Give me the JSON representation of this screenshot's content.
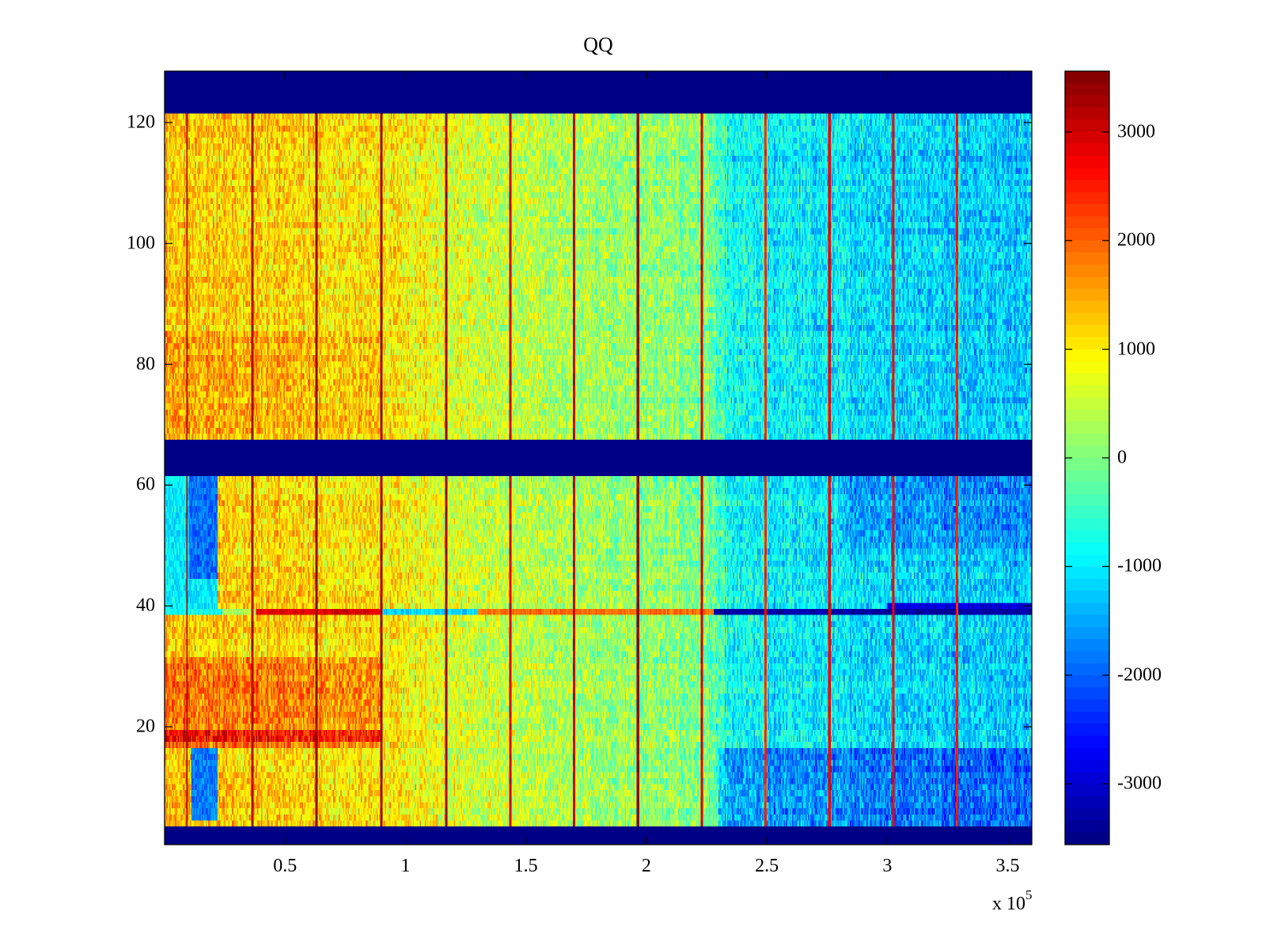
{
  "chart_data": {
    "type": "heatmap",
    "title": "QQ",
    "xlabel": "",
    "ylabel": "",
    "x_multiplier_label": {
      "base": "x 10",
      "exponent": "5"
    },
    "xlim": [
      0,
      360000
    ],
    "ylim": [
      0.5,
      128.5
    ],
    "clim": [
      -3560,
      3560
    ],
    "colormap": "jet",
    "colormap_levels": 64,
    "x_ticks": [
      {
        "value": 50000,
        "label": "0.5"
      },
      {
        "value": 100000,
        "label": "1"
      },
      {
        "value": 150000,
        "label": "1.5"
      },
      {
        "value": 200000,
        "label": "2"
      },
      {
        "value": 250000,
        "label": "2.5"
      },
      {
        "value": 300000,
        "label": "3"
      },
      {
        "value": 350000,
        "label": "3.5"
      }
    ],
    "y_ticks": [
      {
        "value": 20,
        "label": "20"
      },
      {
        "value": 40,
        "label": "40"
      },
      {
        "value": 60,
        "label": "60"
      },
      {
        "value": 80,
        "label": "80"
      },
      {
        "value": 100,
        "label": "100"
      },
      {
        "value": 120,
        "label": "120"
      }
    ],
    "colorbar_ticks": [
      {
        "value": 3000,
        "label": "3000"
      },
      {
        "value": 2000,
        "label": "2000"
      },
      {
        "value": 1000,
        "label": "1000"
      },
      {
        "value": 0,
        "label": "0"
      },
      {
        "value": -1000,
        "label": "-1000"
      },
      {
        "value": -2000,
        "label": "-2000"
      },
      {
        "value": -3000,
        "label": "-3000"
      }
    ],
    "empty_row_bands": [
      {
        "rows": [
          1,
          3
        ],
        "value": -3560
      },
      {
        "rows": [
          62,
          67
        ],
        "value": -3560
      },
      {
        "rows": [
          122,
          128
        ],
        "value": -3560
      }
    ],
    "columns": 720,
    "column_trend": [
      {
        "x": 0,
        "value": 1300
      },
      {
        "x": 90000,
        "value": 1000
      },
      {
        "x": 150000,
        "value": 400
      },
      {
        "x": 225000,
        "value": 0
      },
      {
        "x": 235000,
        "value": -900
      },
      {
        "x": 360000,
        "value": -1300
      }
    ],
    "row_group_offsets": [
      {
        "rows": [
          68,
          121
        ],
        "offset": 0
      },
      {
        "rows": [
          69,
          85
        ],
        "offset": 250,
        "x_range": [
          0,
          90000
        ]
      },
      {
        "rows": [
          4,
          61
        ],
        "offset": 0
      },
      {
        "rows": [
          17,
          31
        ],
        "offset": 600,
        "x_range": [
          0,
          90000
        ]
      },
      {
        "rows": [
          18,
          19
        ],
        "offset": 700,
        "x_range": [
          0,
          90000
        ]
      },
      {
        "rows": [
          4,
          16
        ],
        "offset": -700,
        "x_range": [
          230000,
          360000
        ]
      },
      {
        "rows": [
          50,
          61
        ],
        "offset": -400,
        "x_range": [
          280000,
          360000
        ]
      }
    ],
    "local_blocks": [
      {
        "rows": [
          40,
          61
        ],
        "x_range": [
          0,
          22000
        ],
        "value": -1000
      },
      {
        "rows": [
          45,
          61
        ],
        "x_range": [
          10000,
          22000
        ],
        "value": -1900
      },
      {
        "rows": [
          5,
          16
        ],
        "x_range": [
          11000,
          22000
        ],
        "value": -1800
      }
    ],
    "special_rows": [
      {
        "row": 39,
        "segments": [
          {
            "x_range": [
              0,
              24000
            ],
            "value": -800
          },
          {
            "x_range": [
              24000,
              38000
            ],
            "value": 300
          },
          {
            "x_range": [
              38000,
              90000
            ],
            "value": 2900
          },
          {
            "x_range": [
              90000,
              130000
            ],
            "value": -1200
          },
          {
            "x_range": [
              130000,
              228000
            ],
            "value": 1900
          },
          {
            "x_range": [
              228000,
              360000
            ],
            "value": -3300
          }
        ]
      },
      {
        "row": 40,
        "segments": [
          {
            "x_range": [
              300000,
              360000
            ],
            "value": -2900
          }
        ]
      }
    ],
    "vertical_streaks": [
      {
        "x": 9200,
        "value": 3300
      },
      {
        "x": 36500,
        "value": 3200
      },
      {
        "x": 63000,
        "value": 3400
      },
      {
        "x": 90000,
        "value": 3300
      },
      {
        "x": 117000,
        "value": 3300
      },
      {
        "x": 143500,
        "value": 3000
      },
      {
        "x": 170000,
        "value": 3100
      },
      {
        "x": 196500,
        "value": 3400
      },
      {
        "x": 223000,
        "value": 3000
      },
      {
        "x": 249500,
        "value": 2400
      },
      {
        "x": 276000,
        "value": 2800
      },
      {
        "x": 302500,
        "value": 2700
      },
      {
        "x": 329000,
        "value": 2500
      }
    ],
    "noise_amplitude": 650
  }
}
